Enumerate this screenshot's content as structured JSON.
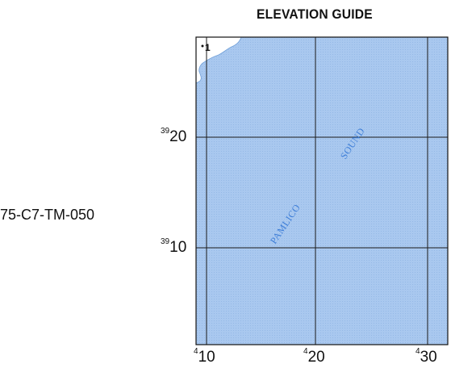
{
  "title": "ELEVATION GUIDE",
  "sheet_id": "75-C7-TM-050",
  "water_labels": {
    "pamlico": "PAMLICO",
    "sound": "SOUND"
  },
  "spot_label": "1",
  "y_ticks": [
    {
      "prefix": "39",
      "value": "20"
    },
    {
      "prefix": "39",
      "value": "10"
    }
  ],
  "x_ticks": [
    {
      "prefix": "4",
      "value": "10"
    },
    {
      "prefix": "4",
      "value": "20"
    },
    {
      "prefix": "4",
      "value": "30"
    }
  ],
  "colors": {
    "water": "#a9c8ef",
    "grid": "#1a1a1a",
    "water_text": "#3f7fd8",
    "land": "#ffffff"
  }
}
